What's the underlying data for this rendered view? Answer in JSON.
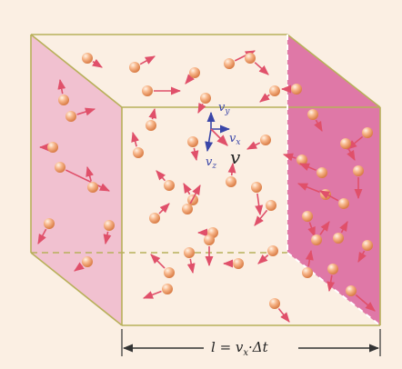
{
  "colors": {
    "background": "#fbefe3",
    "box_edge": "#b8b05a",
    "left_face": "#eeb8cc",
    "right_face": "#db6aa0",
    "arrow": "#e0506a",
    "molecule": "#f2a070",
    "axis_vector": "#3a46a8",
    "dimension_line": "#333333"
  },
  "labels": {
    "vy": "v",
    "vy_sub": "y",
    "vx": "v",
    "vx_sub": "x",
    "vz": "v",
    "vz_sub": "z",
    "v": "v",
    "length_formula": "l = v",
    "length_formula_sub": "x",
    "length_formula_rest": "·Δt"
  }
}
